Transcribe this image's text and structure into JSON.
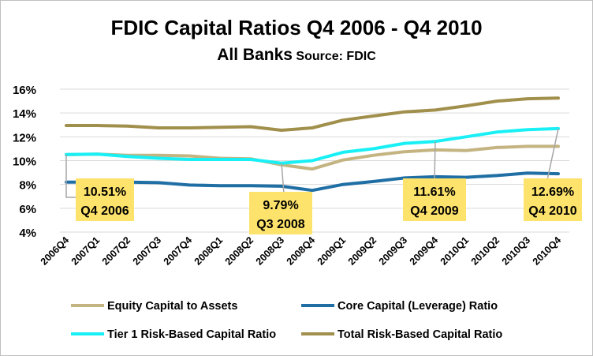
{
  "chart_data": {
    "type": "line",
    "title": "FDIC Capital Ratios Q4 2006 - Q4 2010",
    "subtitle": "All Banks",
    "source": "Source: FDIC",
    "categories": [
      "2006Q4",
      "2007Q1",
      "2007Q2",
      "2007Q3",
      "2007Q4",
      "2008Q1",
      "2008Q2",
      "2008Q3",
      "2008Q4",
      "2009Q1",
      "2009Q2",
      "2009Q3",
      "2009Q4",
      "2010Q1",
      "2010Q2",
      "2010Q3",
      "2010Q4"
    ],
    "ylim": [
      4,
      16
    ],
    "yticks": [
      "4%",
      "6%",
      "8%",
      "10%",
      "12%",
      "14%",
      "16%"
    ],
    "ytick_values": [
      4,
      6,
      8,
      10,
      12,
      14,
      16
    ],
    "grid": true,
    "legend_position": "bottom",
    "series": [
      {
        "name": "Equity Capital to Assets",
        "color": "#c4b482",
        "values": [
          10.5,
          10.55,
          10.45,
          10.45,
          10.4,
          10.2,
          10.15,
          9.65,
          9.3,
          10.05,
          10.45,
          10.75,
          10.9,
          10.85,
          11.1,
          11.2,
          11.2
        ]
      },
      {
        "name": "Core Capital (Leverage) Ratio",
        "color": "#1f6fa5",
        "values": [
          8.2,
          8.2,
          8.2,
          8.15,
          7.95,
          7.9,
          7.9,
          7.85,
          7.5,
          8.0,
          8.25,
          8.55,
          8.65,
          8.6,
          8.75,
          8.95,
          8.9
        ]
      },
      {
        "name": "Tier 1 Risk-Based Capital Ratio",
        "color": "#19f0f5",
        "values": [
          10.51,
          10.55,
          10.35,
          10.2,
          10.1,
          10.1,
          10.1,
          9.79,
          10.0,
          10.7,
          11.0,
          11.45,
          11.61,
          12.0,
          12.4,
          12.6,
          12.69
        ]
      },
      {
        "name": "Total Risk-Based Capital Ratio",
        "color": "#a18f4c",
        "values": [
          12.95,
          12.95,
          12.9,
          12.75,
          12.75,
          12.8,
          12.85,
          12.55,
          12.75,
          13.4,
          13.75,
          14.1,
          14.25,
          14.6,
          15.0,
          15.2,
          15.25
        ]
      }
    ],
    "annotations": [
      {
        "value": "10.51%",
        "period": "Q4 2006",
        "category_index": 0,
        "series_index": 2
      },
      {
        "value": "9.79%",
        "period": "Q3 2008",
        "category_index": 7,
        "series_index": 2
      },
      {
        "value": "11.61%",
        "period": "Q4 2009",
        "category_index": 12,
        "series_index": 2
      },
      {
        "value": "12.69%",
        "period": "Q4 2010",
        "category_index": 16,
        "series_index": 2
      }
    ]
  }
}
